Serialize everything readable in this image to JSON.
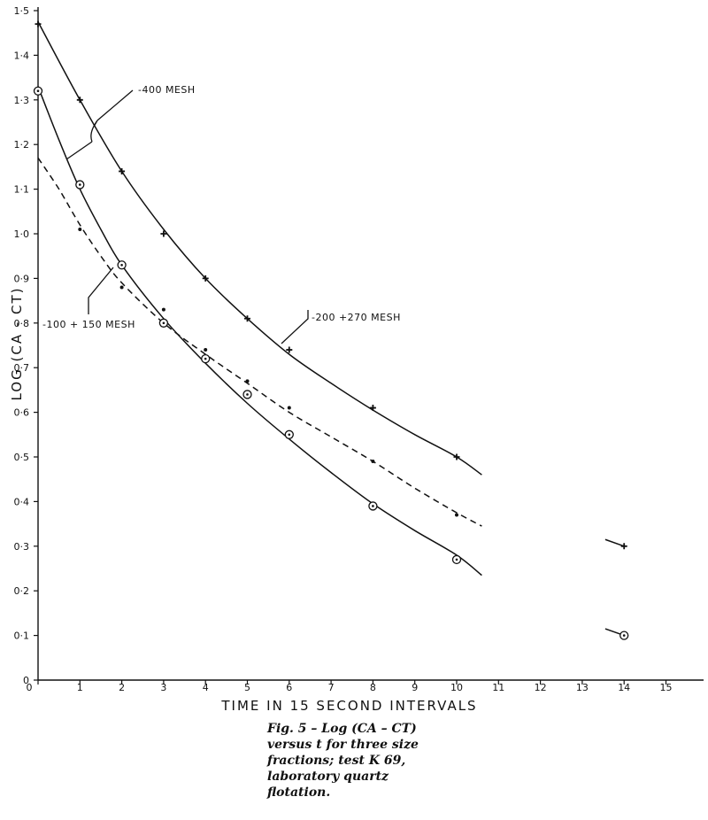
{
  "chart_data": {
    "type": "scatter",
    "xlabel": "TIME IN 15 SECOND INTERVALS",
    "ylabel": "LOG (CA - CT)",
    "xlim": [
      0,
      16
    ],
    "ylim": [
      0,
      1.5
    ],
    "x_tick_labels": [
      "0",
      "1",
      "2",
      "3",
      "4",
      "5",
      "6",
      "7",
      "8",
      "9",
      "10",
      "11",
      "12",
      "13",
      "14",
      "15"
    ],
    "y_tick_labels": [
      "0",
      "0·1",
      "0·2",
      "0·3",
      "0·4",
      "0·5",
      "0·6",
      "0·7",
      "0·8",
      "0·9",
      "1·0",
      "1·1",
      "1·2",
      "1·3",
      "1·4",
      "1·5"
    ],
    "grid": false,
    "series": [
      {
        "name": "-200 +270 MESH",
        "marker": "plus",
        "line_style": "solid",
        "points": [
          [
            0,
            1.47
          ],
          [
            1,
            1.3
          ],
          [
            2,
            1.14
          ],
          [
            3,
            1.0
          ],
          [
            4,
            0.9
          ],
          [
            5,
            0.81
          ],
          [
            6,
            0.74
          ],
          [
            8,
            0.61
          ],
          [
            10,
            0.5
          ],
          [
            14,
            0.3
          ]
        ],
        "curve": [
          [
            0,
            1.475
          ],
          [
            1,
            1.3
          ],
          [
            2,
            1.14
          ],
          [
            3,
            1.01
          ],
          [
            4,
            0.9
          ],
          [
            5,
            0.81
          ],
          [
            6,
            0.73
          ],
          [
            7,
            0.665
          ],
          [
            8,
            0.605
          ],
          [
            9,
            0.55
          ],
          [
            10,
            0.5
          ],
          [
            10.6,
            0.46
          ]
        ],
        "tail": [
          [
            13.55,
            0.315
          ],
          [
            14,
            0.3
          ]
        ]
      },
      {
        "name": "-400 MESH",
        "marker": "circle-dot",
        "line_style": "solid",
        "points": [
          [
            0,
            1.32
          ],
          [
            1,
            1.11
          ],
          [
            2,
            0.93
          ],
          [
            3,
            0.8
          ],
          [
            4,
            0.72
          ],
          [
            5,
            0.64
          ],
          [
            6,
            0.55
          ],
          [
            8,
            0.39
          ],
          [
            10,
            0.27
          ],
          [
            14,
            0.1
          ]
        ],
        "curve": [
          [
            0,
            1.33
          ],
          [
            0.5,
            1.21
          ],
          [
            1,
            1.1
          ],
          [
            1.5,
            1.01
          ],
          [
            2,
            0.93
          ],
          [
            3,
            0.81
          ],
          [
            4,
            0.71
          ],
          [
            5,
            0.62
          ],
          [
            6,
            0.54
          ],
          [
            7,
            0.465
          ],
          [
            8,
            0.395
          ],
          [
            9,
            0.335
          ],
          [
            10,
            0.28
          ],
          [
            10.6,
            0.235
          ]
        ],
        "tail": [
          [
            13.55,
            0.115
          ],
          [
            14,
            0.1
          ]
        ]
      },
      {
        "name": "-100 + 150 MESH",
        "marker": "dot",
        "line_style": "dashed",
        "points": [
          [
            1,
            1.01
          ],
          [
            2,
            0.88
          ],
          [
            3,
            0.83
          ],
          [
            4,
            0.74
          ],
          [
            5,
            0.67
          ],
          [
            6,
            0.61
          ],
          [
            8,
            0.49
          ],
          [
            10,
            0.37
          ]
        ],
        "curve": [
          [
            0,
            1.17
          ],
          [
            0.5,
            1.1
          ],
          [
            1,
            1.02
          ],
          [
            1.5,
            0.95
          ],
          [
            2,
            0.89
          ],
          [
            3,
            0.8
          ],
          [
            4,
            0.73
          ],
          [
            5,
            0.665
          ],
          [
            6,
            0.6
          ],
          [
            7,
            0.545
          ],
          [
            8,
            0.49
          ],
          [
            9,
            0.43
          ],
          [
            10,
            0.375
          ],
          [
            10.6,
            0.345
          ]
        ]
      }
    ],
    "annotations": {
      "mesh_400": "-400 MESH",
      "mesh_200_270": "-200 +270 MESH",
      "mesh_100_150": "-100 + 150 MESH"
    }
  },
  "caption": {
    "line1": "Fig. 5 – Log (CA – CT)",
    "line2": "versus t for three size",
    "line3": "fractions; test K 69,",
    "line4": "laboratory quartz",
    "line5": "flotation."
  }
}
